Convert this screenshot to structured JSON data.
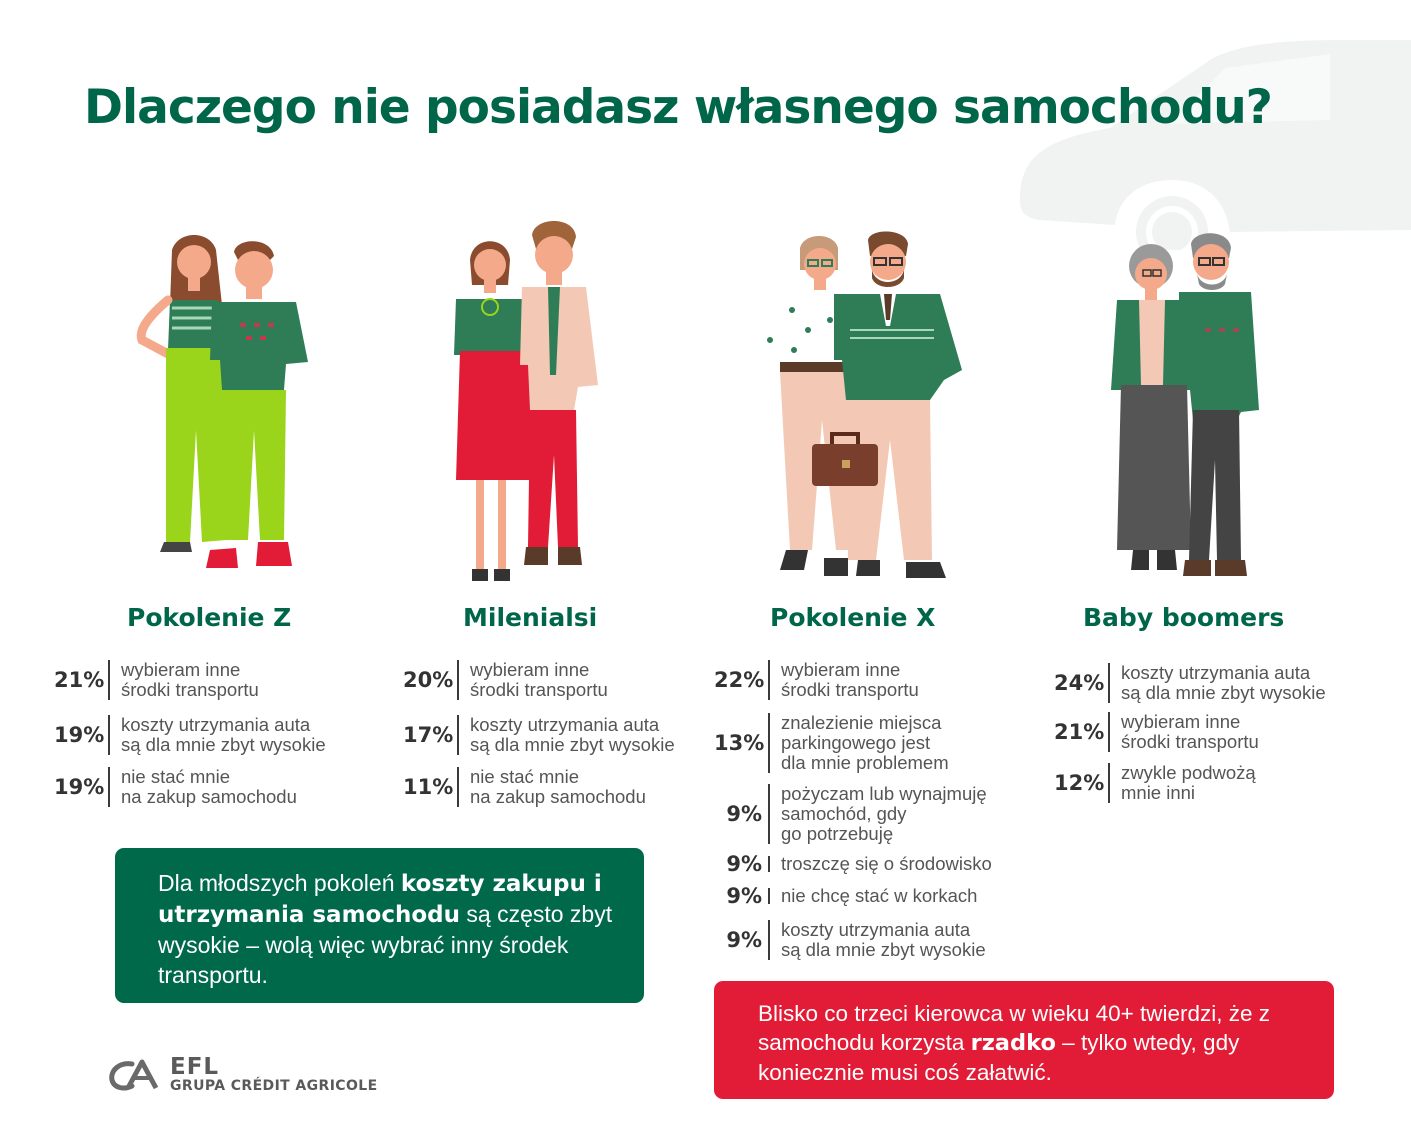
{
  "title": "Dlaczego nie posiadasz własnego samochodu?",
  "colors": {
    "brand_green": "#00664a",
    "accent_red": "#e21c36",
    "text": "#3a3a3a"
  },
  "generations": [
    {
      "name": "Pokolenie Z",
      "illustration": "young-couple-illustration",
      "stats": [
        {
          "pct": "21%",
          "text_lines": [
            "wybieram inne",
            "środki transportu"
          ]
        },
        {
          "pct": "19%",
          "text_lines": [
            "koszty utrzymania auta",
            "są dla mnie zbyt wysokie"
          ]
        },
        {
          "pct": "19%",
          "text_lines": [
            "nie stać mnie",
            "na zakup samochodu"
          ]
        }
      ]
    },
    {
      "name": "Milenialsi",
      "illustration": "millennial-couple-illustration",
      "stats": [
        {
          "pct": "20%",
          "text_lines": [
            "wybieram inne",
            "środki transportu"
          ]
        },
        {
          "pct": "17%",
          "text_lines": [
            "koszty utrzymania auta",
            "są dla mnie zbyt wysokie"
          ]
        },
        {
          "pct": "11%",
          "text_lines": [
            "nie stać mnie",
            "na zakup samochodu"
          ]
        }
      ]
    },
    {
      "name": "Pokolenie X",
      "illustration": "genx-couple-illustration",
      "stats": [
        {
          "pct": "22%",
          "text_lines": [
            "wybieram inne",
            "środki transportu"
          ]
        },
        {
          "pct": "13%",
          "text_lines": [
            "znalezienie miejsca",
            "parkingowego jest",
            "dla mnie problemem"
          ]
        },
        {
          "pct": "9%",
          "text_lines": [
            "pożyczam lub wynajmuję",
            "samochód, gdy",
            "go potrzebuję"
          ]
        },
        {
          "pct": "9%",
          "text_lines": [
            "troszczę się o środowisko"
          ]
        },
        {
          "pct": "9%",
          "text_lines": [
            "nie chcę stać w korkach"
          ]
        },
        {
          "pct": "9%",
          "text_lines": [
            "koszty utrzymania auta",
            "są dla mnie zbyt wysokie"
          ]
        }
      ]
    },
    {
      "name": "Baby boomers",
      "illustration": "senior-couple-illustration",
      "stats": [
        {
          "pct": "24%",
          "text_lines": [
            "koszty utrzymania auta",
            "są dla mnie zbyt wysokie"
          ]
        },
        {
          "pct": "21%",
          "text_lines": [
            "wybieram inne",
            "środki transportu"
          ]
        },
        {
          "pct": "12%",
          "text_lines": [
            "zwykle podwożą",
            "mnie inni"
          ]
        }
      ]
    }
  ],
  "note_green": {
    "part1": "Dla młodszych pokoleń ",
    "bold": "koszty zakupu i utrzymania samochodu",
    "part2": " są często zbyt wysokie – wolą więc wybrać inny środek transportu."
  },
  "note_red": {
    "part1": "Blisko co trzeci kierowca w wieku 40+ twierdzi, że z samochodu korzysta ",
    "bold": "rzadko",
    "part2": " – tylko wtedy, gdy koniecznie musi coś załatwić."
  },
  "logo": {
    "symbol": "ca-logo-icon",
    "name": "EFL",
    "sub": "GRUPA CRÉDIT AGRICOLE"
  }
}
